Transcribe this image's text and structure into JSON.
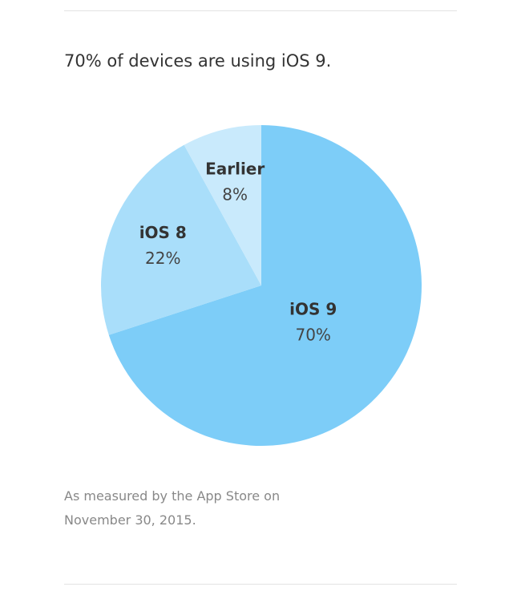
{
  "chart_data": {
    "type": "pie",
    "title": "70% of devices are using iOS 9.",
    "categories": [
      "iOS 9",
      "iOS 8",
      "Earlier"
    ],
    "values": [
      70,
      22,
      8
    ],
    "value_labels": [
      "70%",
      "22%",
      "8%"
    ],
    "colors": [
      "#7dcdf8",
      "#a9defa",
      "#c9eafc"
    ],
    "note": "As measured by the App Store on November 30, 2015."
  }
}
